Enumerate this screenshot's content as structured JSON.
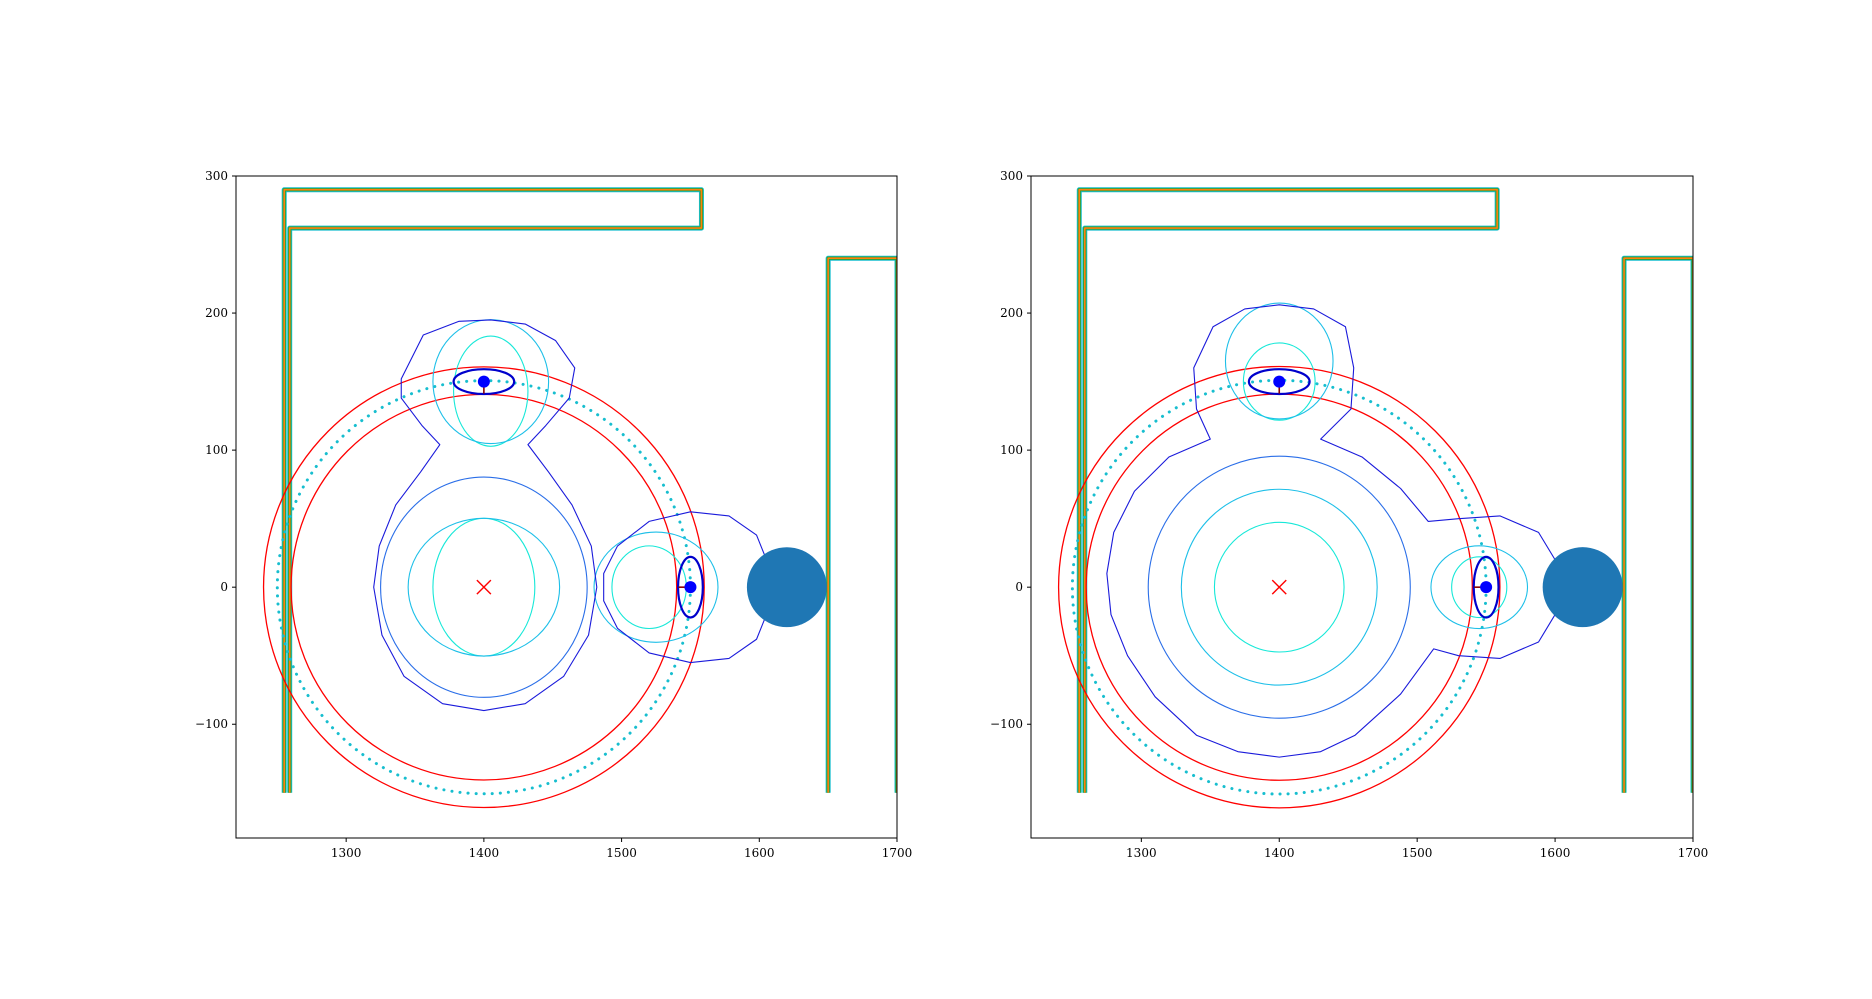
{
  "chart_data": [
    {
      "type": "contour",
      "xlim": [
        1220,
        1700
      ],
      "ylim": [
        -183,
        300
      ],
      "xticks": [
        1300,
        1400,
        1500,
        1600,
        1700
      ],
      "yticks": [
        -100,
        0,
        100,
        200,
        300
      ],
      "xtick_labels": [
        "1300",
        "1400",
        "1500",
        "1600",
        "1700"
      ],
      "ytick_labels": [
        "−100",
        "0",
        "100",
        "200",
        "300"
      ],
      "center_marker": {
        "x": 1400,
        "y": 0,
        "symbol": "x",
        "color": "#ff0000"
      },
      "red_rings": [
        {
          "cx": 1400,
          "cy": 0,
          "r": 140
        },
        {
          "cx": 1400,
          "cy": 0,
          "r": 160
        }
      ],
      "dotted_ring": {
        "cx": 1400,
        "cy": 0,
        "r": 150,
        "color": "#17becf"
      },
      "agents": [
        {
          "x": 1400,
          "y": 150,
          "ellipse_rx": 22,
          "ellipse_ry": 9,
          "heading": "down"
        },
        {
          "x": 1550,
          "y": 0,
          "ellipse_rx": 9,
          "ellipse_ry": 22,
          "heading": "left"
        }
      ],
      "obstacle": {
        "x": 1620,
        "y": 0,
        "r": 29,
        "color": "#1f77b4"
      },
      "walls": [
        {
          "points": [
            [
              1255,
              -150
            ],
            [
              1255,
              290
            ],
            [
              1558,
              290
            ],
            [
              1558,
              262
            ],
            [
              1259,
              262
            ],
            [
              1259,
              -150
            ]
          ]
        },
        {
          "points": [
            [
              1650,
              -150
            ],
            [
              1650,
              240
            ],
            [
              1700,
              240
            ],
            [
              1700,
              -150
            ]
          ]
        }
      ],
      "contours": [
        {
          "kind": "ellipse",
          "cx": 1400,
          "cy": 0,
          "rx": 37,
          "ry": 50,
          "color": "#17e8d8"
        },
        {
          "kind": "ellipse",
          "cx": 1400,
          "cy": 0,
          "rx": 55,
          "ry": 50,
          "color": "#1dbfe8"
        },
        {
          "kind": "ellipse",
          "cx": 1400,
          "cy": 0,
          "rx": 75,
          "ry": 80,
          "color": "#2a6ee8"
        },
        {
          "kind": "ellipse",
          "cx": 1405,
          "cy": 143,
          "rx": 27,
          "ry": 40,
          "color": "#17e8d8"
        },
        {
          "kind": "ellipse",
          "cx": 1405,
          "cy": 150,
          "rx": 42,
          "ry": 45,
          "color": "#1dbfe8"
        },
        {
          "kind": "ellipse",
          "cx": 1520,
          "cy": 0,
          "rx": 27,
          "ry": 30,
          "color": "#17e8d8"
        },
        {
          "kind": "ellipse",
          "cx": 1525,
          "cy": 0,
          "rx": 45,
          "ry": 40,
          "color": "#1dbfe8"
        },
        {
          "kind": "path",
          "points": [
            [
              1340,
              152
            ],
            [
              1356,
              184
            ],
            [
              1382,
              194
            ],
            [
              1405,
              195
            ],
            [
              1430,
              192
            ],
            [
              1452,
              180
            ],
            [
              1466,
              160
            ],
            [
              1462,
              138
            ],
            [
              1445,
              118
            ],
            [
              1432,
              104
            ],
            [
              1447,
              84
            ],
            [
              1464,
              60
            ],
            [
              1478,
              30
            ],
            [
              1482,
              0
            ],
            [
              1476,
              -35
            ],
            [
              1458,
              -65
            ],
            [
              1430,
              -85
            ],
            [
              1400,
              -90
            ],
            [
              1370,
              -85
            ],
            [
              1342,
              -65
            ],
            [
              1326,
              -35
            ],
            [
              1320,
              0
            ],
            [
              1324,
              30
            ],
            [
              1336,
              60
            ],
            [
              1354,
              84
            ],
            [
              1368,
              104
            ],
            [
              1355,
              118
            ],
            [
              1340,
              138
            ]
          ],
          "color": "#1a1adb"
        },
        {
          "kind": "path",
          "points": [
            [
              1487,
              10
            ],
            [
              1497,
              30
            ],
            [
              1520,
              48
            ],
            [
              1550,
              55
            ],
            [
              1578,
              52
            ],
            [
              1598,
              38
            ],
            [
              1606,
              18
            ],
            [
              1606,
              -18
            ],
            [
              1598,
              -38
            ],
            [
              1578,
              -52
            ],
            [
              1550,
              -55
            ],
            [
              1520,
              -48
            ],
            [
              1497,
              -30
            ],
            [
              1487,
              -10
            ]
          ],
          "color": "#1a1adb"
        }
      ]
    },
    {
      "type": "contour",
      "xlim": [
        1220,
        1700
      ],
      "ylim": [
        -183,
        300
      ],
      "xticks": [
        1300,
        1400,
        1500,
        1600,
        1700
      ],
      "yticks": [
        -100,
        0,
        100,
        200,
        300
      ],
      "xtick_labels": [
        "1300",
        "1400",
        "1500",
        "1600",
        "1700"
      ],
      "ytick_labels": [
        "−100",
        "0",
        "100",
        "200",
        "300"
      ],
      "center_marker": {
        "x": 1400,
        "y": 0,
        "symbol": "x",
        "color": "#ff0000"
      },
      "red_rings": [
        {
          "cx": 1400,
          "cy": 0,
          "r": 140
        },
        {
          "cx": 1400,
          "cy": 0,
          "r": 160
        }
      ],
      "dotted_ring": {
        "cx": 1400,
        "cy": 0,
        "r": 150,
        "color": "#17becf"
      },
      "agents": [
        {
          "x": 1400,
          "y": 150,
          "ellipse_rx": 22,
          "ellipse_ry": 9,
          "heading": "down"
        },
        {
          "x": 1550,
          "y": 0,
          "ellipse_rx": 9,
          "ellipse_ry": 22,
          "heading": "left"
        }
      ],
      "obstacle": {
        "x": 1620,
        "y": 0,
        "r": 29,
        "color": "#1f77b4"
      },
      "walls": [
        {
          "points": [
            [
              1255,
              -150
            ],
            [
              1255,
              290
            ],
            [
              1558,
              290
            ],
            [
              1558,
              262
            ],
            [
              1259,
              262
            ],
            [
              1259,
              -150
            ]
          ]
        },
        {
          "points": [
            [
              1650,
              -150
            ],
            [
              1650,
              240
            ],
            [
              1700,
              240
            ],
            [
              1700,
              -150
            ]
          ]
        }
      ],
      "contours": [
        {
          "kind": "ellipse",
          "cx": 1400,
          "cy": 0,
          "rx": 47,
          "ry": 47,
          "color": "#17e8d8"
        },
        {
          "kind": "ellipse",
          "cx": 1400,
          "cy": 0,
          "rx": 71,
          "ry": 71,
          "color": "#1dbfe8"
        },
        {
          "kind": "ellipse",
          "cx": 1400,
          "cy": 0,
          "rx": 95,
          "ry": 95,
          "color": "#2a6ee8"
        },
        {
          "kind": "ellipse",
          "cx": 1400,
          "cy": 150,
          "rx": 26,
          "ry": 28,
          "color": "#17e8d8"
        },
        {
          "kind": "ellipse",
          "cx": 1400,
          "cy": 165,
          "rx": 39,
          "ry": 42,
          "color": "#1dbfe8"
        },
        {
          "kind": "ellipse",
          "cx": 1545,
          "cy": 0,
          "rx": 20,
          "ry": 22,
          "color": "#17e8d8"
        },
        {
          "kind": "ellipse",
          "cx": 1545,
          "cy": 0,
          "rx": 35,
          "ry": 30,
          "color": "#1dbfe8"
        },
        {
          "kind": "path",
          "points": [
            [
              1338,
              160
            ],
            [
              1352,
              190
            ],
            [
              1375,
              203
            ],
            [
              1400,
              206
            ],
            [
              1425,
              203
            ],
            [
              1448,
              190
            ],
            [
              1454,
              160
            ],
            [
              1452,
              130
            ],
            [
              1430,
              108
            ],
            [
              1460,
              95
            ],
            [
              1488,
              72
            ],
            [
              1508,
              48
            ],
            [
              1530,
              50
            ],
            [
              1560,
              52
            ],
            [
              1588,
              40
            ],
            [
              1600,
              20
            ],
            [
              1600,
              -20
            ],
            [
              1588,
              -40
            ],
            [
              1560,
              -52
            ],
            [
              1530,
              -50
            ],
            [
              1512,
              -45
            ],
            [
              1488,
              -78
            ],
            [
              1455,
              -108
            ],
            [
              1430,
              -120
            ],
            [
              1400,
              -124
            ],
            [
              1370,
              -120
            ],
            [
              1340,
              -108
            ],
            [
              1310,
              -80
            ],
            [
              1290,
              -50
            ],
            [
              1278,
              -20
            ],
            [
              1275,
              10
            ],
            [
              1280,
              40
            ],
            [
              1295,
              70
            ],
            [
              1320,
              95
            ],
            [
              1350,
              108
            ],
            [
              1340,
              130
            ]
          ],
          "color": "#1a1adb"
        }
      ]
    }
  ]
}
